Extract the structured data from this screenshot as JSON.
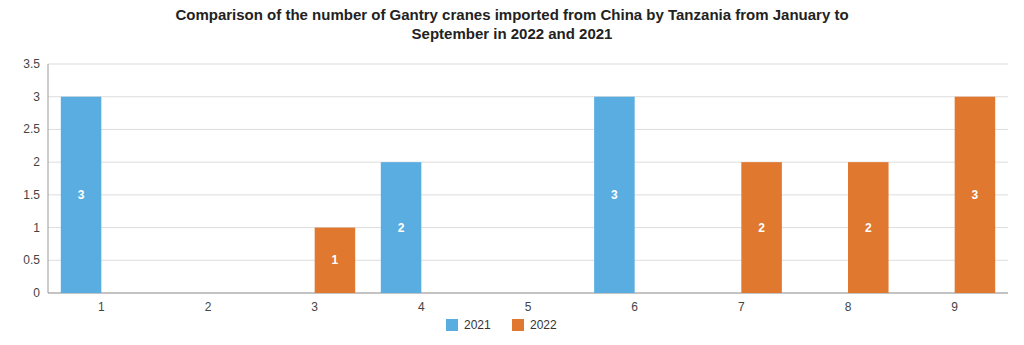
{
  "chart_data": {
    "type": "bar",
    "title": "Comparison of the number of Gantry cranes imported from China by Tanzania from January to\nSeptember in 2022 and 2021",
    "categories": [
      "1",
      "2",
      "3",
      "4",
      "5",
      "6",
      "7",
      "8",
      "9"
    ],
    "series": [
      {
        "name": "2021",
        "color": "#5aade0",
        "values": [
          3,
          0,
          0,
          2,
          0,
          3,
          0,
          0,
          0
        ]
      },
      {
        "name": "2022",
        "color": "#e07830",
        "values": [
          0,
          0,
          1,
          0,
          0,
          0,
          2,
          2,
          3
        ]
      }
    ],
    "ylim": [
      0,
      3.5
    ],
    "yticks": [
      0,
      0.5,
      1.0,
      1.5,
      2.0,
      2.5,
      3.0,
      3.5
    ],
    "grid": true,
    "legend": "bottom",
    "data_labels": true
  }
}
